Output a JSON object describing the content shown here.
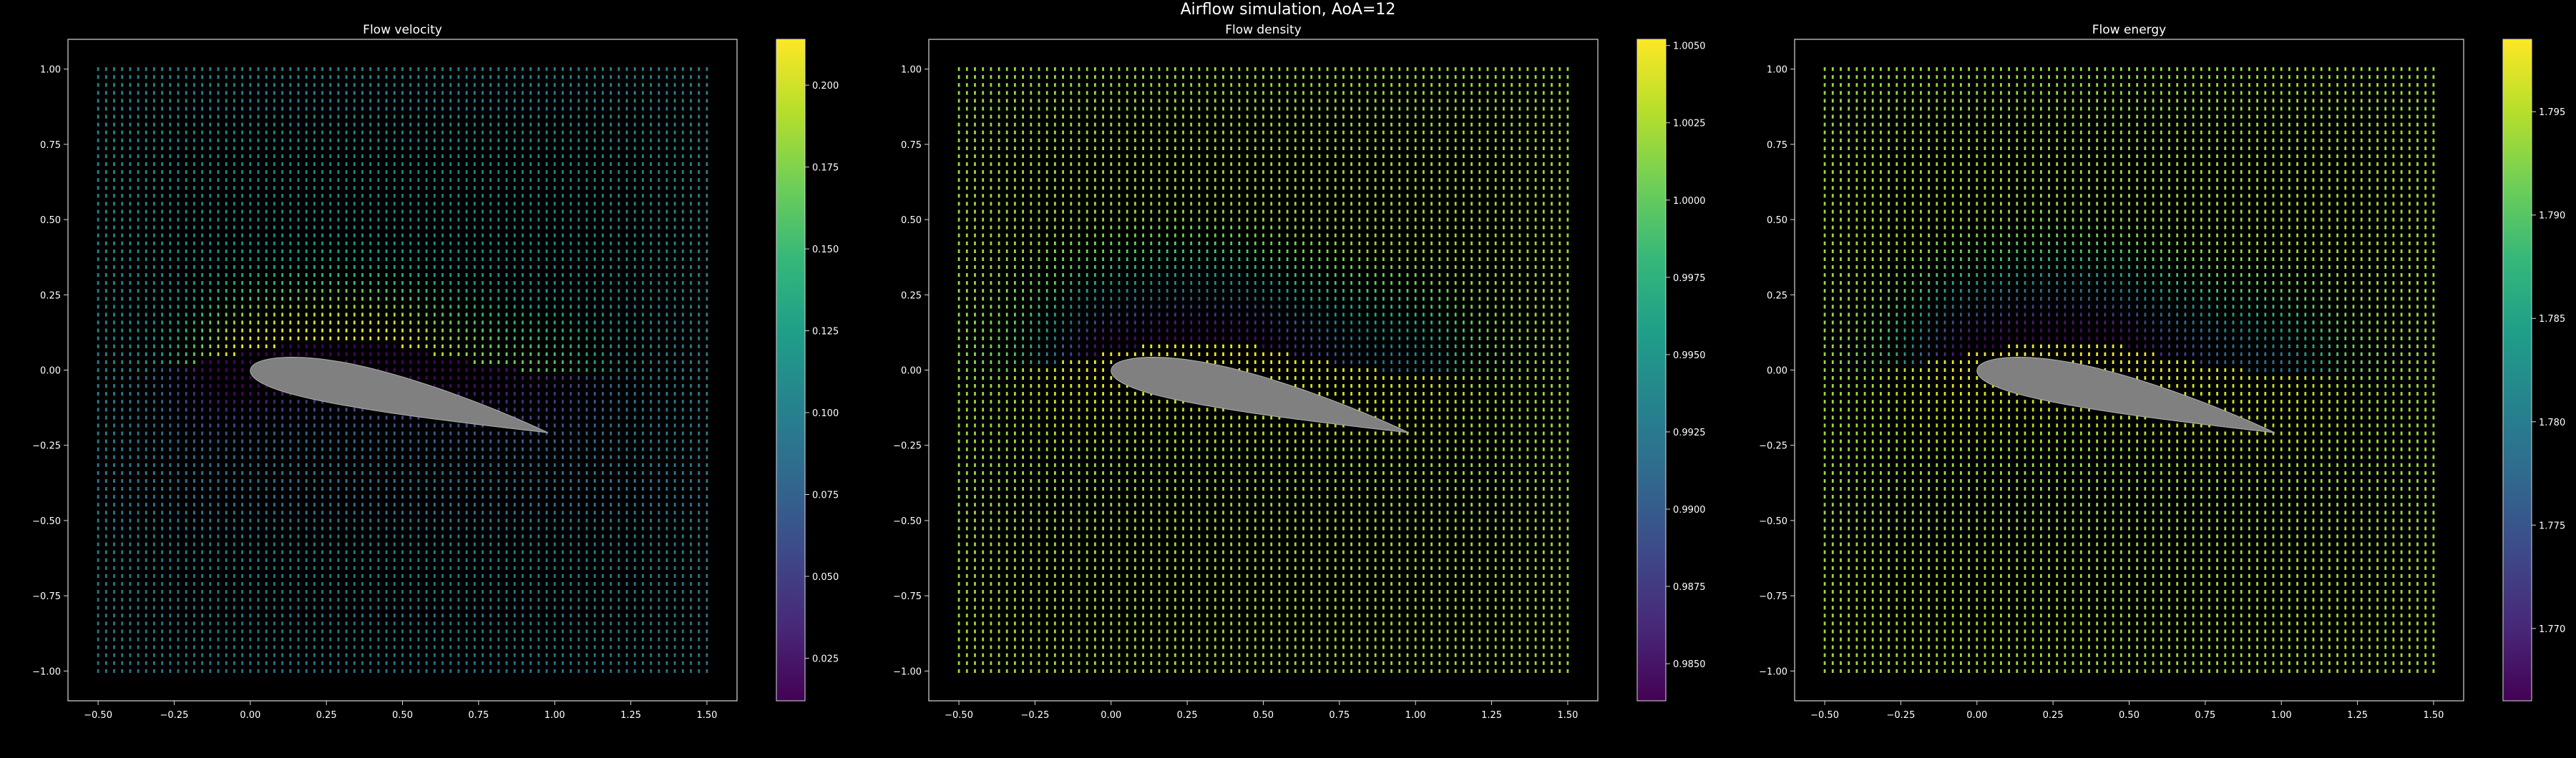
{
  "title": "Airflow simulation, AoA=12",
  "colormap": [
    "#440154",
    "#482878",
    "#3e4989",
    "#31688e",
    "#26828e",
    "#1f9e89",
    "#35b779",
    "#6ece58",
    "#b5de2b",
    "#fde725"
  ],
  "colors": {
    "background": "#000000",
    "airfoil": "#808080",
    "axes": "#d9d9d9"
  },
  "chart_data": [
    {
      "type": "heatmap",
      "title": "Flow velocity",
      "xlim": [
        -0.5,
        1.5
      ],
      "ylim": [
        -1.0,
        1.0
      ],
      "xticks": [
        "−0.50",
        "−0.25",
        "0.00",
        "0.25",
        "0.50",
        "0.75",
        "1.00",
        "1.25",
        "1.50"
      ],
      "yticks": [
        "1.00",
        "0.75",
        "0.50",
        "0.25",
        "0.00",
        "−0.25",
        "−0.50",
        "−0.75",
        "−1.00"
      ],
      "colorbar": {
        "min": 0.012,
        "max": 0.214,
        "ticks": [
          "0.025",
          "0.050",
          "0.075",
          "0.100",
          "0.125",
          "0.150",
          "0.175",
          "0.200"
        ]
      },
      "field": {
        "freestream": 0.1,
        "upper_peak": 0.21,
        "lower_wake_min": 0.015
      }
    },
    {
      "type": "heatmap",
      "title": "Flow density",
      "xlim": [
        -0.5,
        1.5
      ],
      "ylim": [
        -1.0,
        1.0
      ],
      "xticks": [
        "−0.50",
        "−0.25",
        "0.00",
        "0.25",
        "0.50",
        "0.75",
        "1.00",
        "1.25",
        "1.50"
      ],
      "yticks": [
        "1.00",
        "0.75",
        "0.50",
        "0.25",
        "0.00",
        "−0.25",
        "−0.50",
        "−0.75",
        "−1.00"
      ],
      "colorbar": {
        "min": 0.9838,
        "max": 1.0052,
        "ticks": [
          "0.9850",
          "0.9875",
          "0.9900",
          "0.9925",
          "0.9950",
          "0.9975",
          "1.0000",
          "1.0025",
          "1.0050"
        ]
      },
      "field": {
        "freestream": 1.0018,
        "upper_min": 0.9845,
        "lower_peak": 1.0048
      }
    },
    {
      "type": "heatmap",
      "title": "Flow energy",
      "xlim": [
        -0.5,
        1.5
      ],
      "ylim": [
        -1.0,
        1.0
      ],
      "xticks": [
        "−0.50",
        "−0.25",
        "0.00",
        "0.25",
        "0.50",
        "0.75",
        "1.00",
        "1.25",
        "1.50"
      ],
      "yticks": [
        "1.00",
        "0.75",
        "0.50",
        "0.25",
        "0.00",
        "−0.25",
        "−0.50",
        "−0.75",
        "−1.00"
      ],
      "colorbar": {
        "min": 1.7665,
        "max": 1.7985,
        "ticks": [
          "1.770",
          "1.775",
          "1.780",
          "1.785",
          "1.790",
          "1.795"
        ]
      },
      "field": {
        "freestream": 1.7935,
        "upper_min": 1.767,
        "lower_peak": 1.7978
      }
    }
  ]
}
